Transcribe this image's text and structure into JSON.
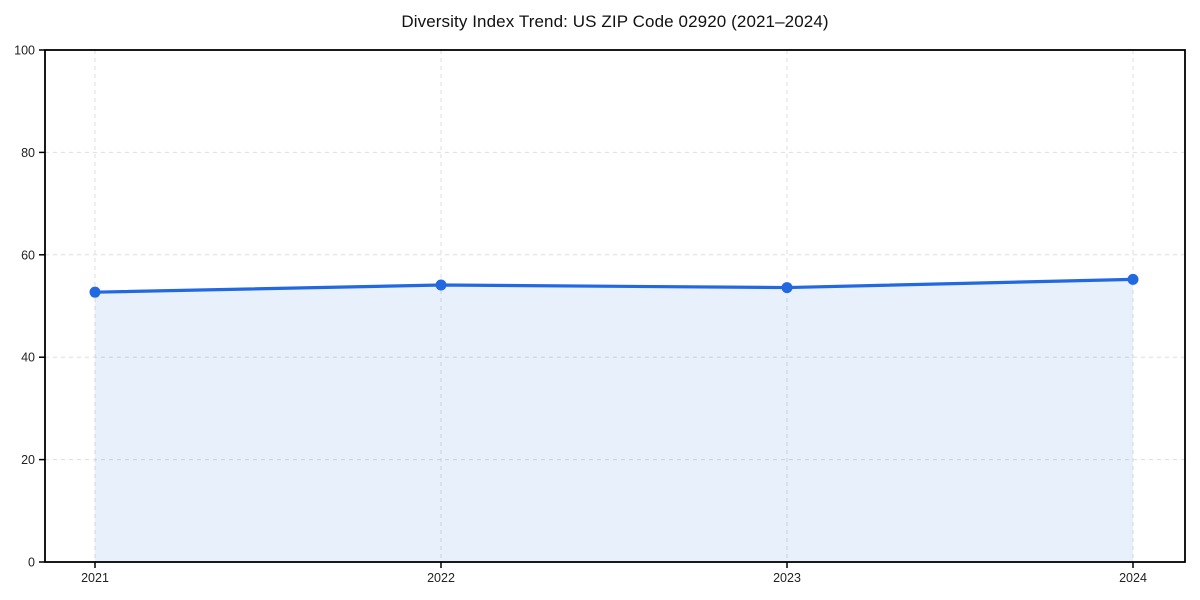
{
  "chart_data": {
    "type": "area",
    "title": "Diversity Index Trend: US ZIP Code 02920 (2021–2024)",
    "x": [
      "2021",
      "2022",
      "2023",
      "2024"
    ],
    "series": [
      {
        "name": "Diversity Index",
        "values": [
          52.7,
          54.1,
          53.6,
          55.2
        ]
      }
    ],
    "xlabel": "",
    "ylabel": "",
    "ylim": [
      0,
      100
    ],
    "yticks": [
      0,
      20,
      40,
      60,
      80,
      100
    ],
    "grid": true,
    "grid_style": "dashed",
    "legend": "none",
    "marker": "circle",
    "colors": {
      "line": "#2268e1",
      "marker": "#2268e1",
      "fill": "rgba(34,104,225,0.10)",
      "grid": "#dddddd",
      "axis": "#000000",
      "text": "#222222",
      "background": "#ffffff"
    }
  }
}
